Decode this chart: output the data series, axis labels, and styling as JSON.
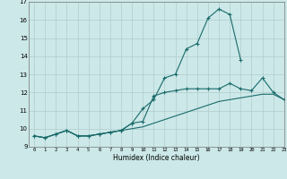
{
  "title": "",
  "xlabel": "Humidex (Indice chaleur)",
  "ylabel": "",
  "bg_color": "#cce8e8",
  "grid_color": "#b0cccc",
  "line_color": "#1a6b6b",
  "xlim": [
    -0.5,
    23
  ],
  "ylim": [
    9,
    17
  ],
  "yticks": [
    9,
    10,
    11,
    12,
    13,
    14,
    15,
    16,
    17
  ],
  "xticks": [
    0,
    1,
    2,
    3,
    4,
    5,
    6,
    7,
    8,
    9,
    10,
    11,
    12,
    13,
    14,
    15,
    16,
    17,
    18,
    19,
    20,
    21,
    22,
    23
  ],
  "x": [
    0,
    1,
    2,
    3,
    4,
    5,
    6,
    7,
    8,
    9,
    10,
    11,
    12,
    13,
    14,
    15,
    16,
    17,
    18,
    19,
    20,
    21,
    22,
    23
  ],
  "line1": [
    9.6,
    9.5,
    9.7,
    9.9,
    9.6,
    9.6,
    9.7,
    9.8,
    9.9,
    10.3,
    11.1,
    11.6,
    12.8,
    13.0,
    14.4,
    14.7,
    16.1,
    16.6,
    16.3,
    13.8,
    null,
    null,
    null,
    null
  ],
  "line2": [
    9.6,
    9.5,
    9.7,
    9.9,
    9.6,
    9.6,
    9.7,
    9.8,
    9.9,
    10.3,
    10.4,
    11.8,
    12.0,
    12.1,
    12.2,
    12.2,
    12.2,
    12.2,
    12.5,
    12.2,
    12.1,
    12.8,
    12.0,
    11.6
  ],
  "line3": [
    9.6,
    9.5,
    9.7,
    9.9,
    9.6,
    9.6,
    9.7,
    9.8,
    9.9,
    10.0,
    10.1,
    10.3,
    10.5,
    10.7,
    10.9,
    11.1,
    11.3,
    11.5,
    11.6,
    11.7,
    11.8,
    11.9,
    11.9,
    11.6
  ]
}
